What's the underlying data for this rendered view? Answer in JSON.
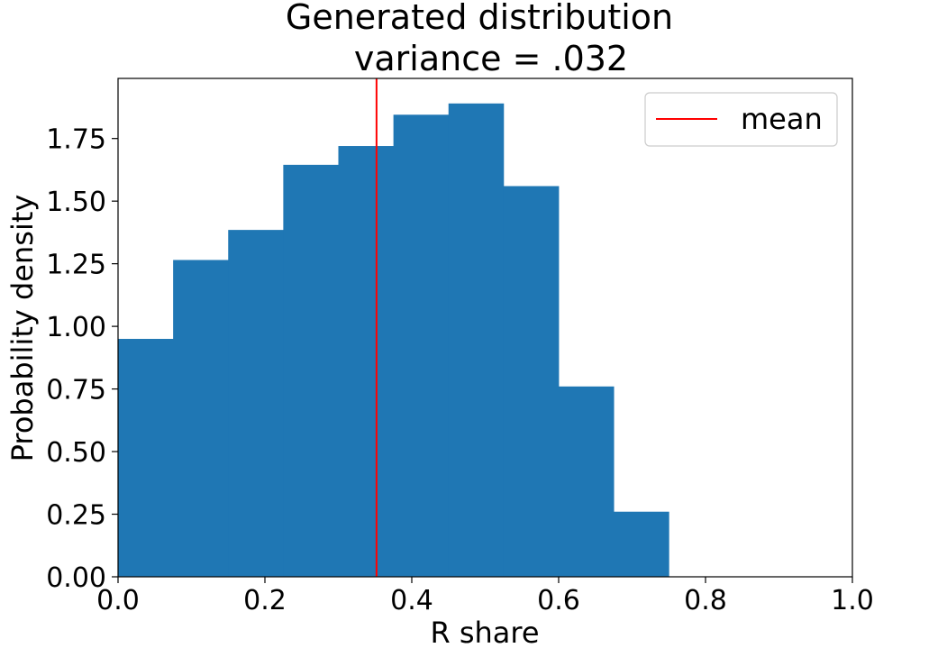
{
  "chart_data": {
    "type": "bar",
    "title_line1": "Generated distribution",
    "title_line2": "variance = .032",
    "xlabel": "R share",
    "ylabel": "Probability density",
    "xlim": [
      0.0,
      1.0
    ],
    "ylim": [
      0.0,
      1.99
    ],
    "x_ticks": [
      0.0,
      0.2,
      0.4,
      0.6,
      0.8,
      1.0
    ],
    "x_tick_labels": [
      "0.0",
      "0.2",
      "0.4",
      "0.6",
      "0.8",
      "1.0"
    ],
    "y_ticks": [
      0.0,
      0.25,
      0.5,
      0.75,
      1.0,
      1.25,
      1.5,
      1.75
    ],
    "y_tick_labels": [
      "0.00",
      "0.25",
      "0.50",
      "0.75",
      "1.00",
      "1.25",
      "1.50",
      "1.75"
    ],
    "bin_edges": [
      0.0,
      0.075,
      0.15,
      0.225,
      0.3,
      0.375,
      0.45,
      0.525,
      0.6,
      0.675,
      0.75
    ],
    "values": [
      0.95,
      1.265,
      1.385,
      1.645,
      1.72,
      1.845,
      1.89,
      1.56,
      0.76,
      0.26
    ],
    "mean": 0.352,
    "bar_color": "#1f77b4",
    "mean_line_color": "#ff0000",
    "legend": {
      "label": "mean",
      "position": "upper right"
    },
    "grid": false
  }
}
